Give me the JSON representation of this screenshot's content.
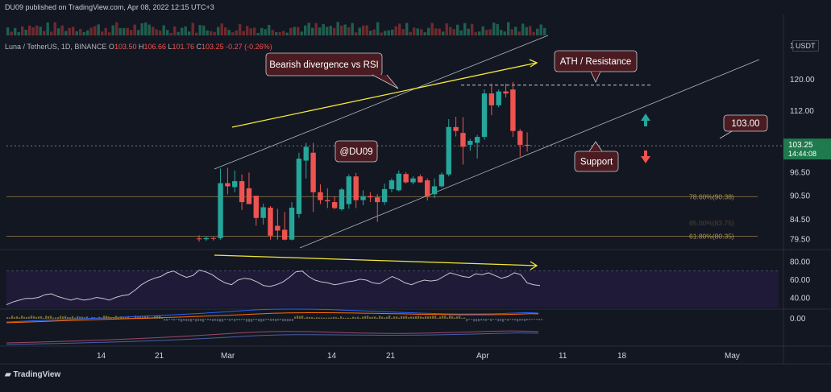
{
  "header": {
    "published": "DU09 published on TradingView.com, Apr 08, 2022 12:15 UTC+3",
    "symbol": "Luna / TetherUS, 1D, BINANCE",
    "ohlc": [
      {
        "label": "O",
        "value": "103.50"
      },
      {
        "label": "H",
        "value": "106.66"
      },
      {
        "label": "L",
        "value": "101.76"
      },
      {
        "label": "C",
        "value": "103.25"
      },
      {
        "label": "",
        "value": "-0.27 (-0.26%)"
      }
    ],
    "currency": "USDT"
  },
  "footer": {
    "brand": "TradingView"
  },
  "price_axis": {
    "ticks": [
      "120.00",
      "112.00",
      "96.50",
      "90.50",
      "84.50",
      "79.50"
    ],
    "top_marker": "1",
    "last_price": "103.25",
    "countdown": "14:44:08"
  },
  "rsi_axis": {
    "ticks": [
      "80.00",
      "60.00",
      "40.00"
    ]
  },
  "macd_axis": {
    "ticks": [
      "0.00"
    ]
  },
  "time_axis": {
    "ticks": [
      "14",
      "21",
      "Mar",
      "14",
      "21",
      "Apr",
      "11",
      "18",
      "May"
    ]
  },
  "annotations": {
    "divergence": "Bearish divergence vs RSI",
    "ath": "ATH / Resistance",
    "watermark": "@DU09",
    "support": "Support",
    "price_label": "103.00",
    "fib_786": "78.60%(90.38)",
    "fib_618": "61.80%(80.35)",
    "fib_hidden": "65.00%(83.75)"
  },
  "colors": {
    "up": "#26a69a",
    "down": "#ef5350",
    "background": "#131722",
    "trend_line": "#f5e83a",
    "rsi_fill": "#2a1e4a",
    "label_bg": "#4a1c22",
    "fib": "#b39552"
  },
  "chart_data": {
    "type": "candlestick",
    "title": "Luna / TetherUS, 1D, BINANCE",
    "candles": [
      {
        "date": "2022-02-24",
        "o": 79.8,
        "h": 80.6,
        "l": 79.0,
        "c": 79.6
      },
      {
        "date": "2022-02-25",
        "o": 79.6,
        "h": 80.4,
        "l": 79.2,
        "c": 79.9
      },
      {
        "date": "2022-02-26",
        "o": 79.9,
        "h": 80.2,
        "l": 79.3,
        "c": 79.7
      },
      {
        "date": "2022-02-27",
        "o": 79.9,
        "h": 97.5,
        "l": 79.5,
        "c": 93.8
      },
      {
        "date": "2022-02-28",
        "o": 93.8,
        "h": 97.7,
        "l": 91.0,
        "c": 93.0
      },
      {
        "date": "2022-03-01",
        "o": 92.8,
        "h": 97.0,
        "l": 91.5,
        "c": 94.3
      },
      {
        "date": "2022-03-02",
        "o": 94.3,
        "h": 96.0,
        "l": 87.0,
        "c": 89.0
      },
      {
        "date": "2022-03-03",
        "o": 92.5,
        "h": 96.5,
        "l": 88.5,
        "c": 88.5
      },
      {
        "date": "2022-03-04",
        "o": 90.6,
        "h": 90.6,
        "l": 83.0,
        "c": 85.0
      },
      {
        "date": "2022-03-05",
        "o": 85.0,
        "h": 88.6,
        "l": 83.3,
        "c": 87.7
      },
      {
        "date": "2022-03-06",
        "o": 87.6,
        "h": 88.0,
        "l": 79.5,
        "c": 80.5
      },
      {
        "date": "2022-03-07",
        "o": 83.0,
        "h": 87.3,
        "l": 79.5,
        "c": 81.8
      },
      {
        "date": "2022-03-08",
        "o": 82.0,
        "h": 86.5,
        "l": 79.3,
        "c": 79.5
      },
      {
        "date": "2022-03-09",
        "o": 79.5,
        "h": 89.0,
        "l": 79.3,
        "c": 87.6
      },
      {
        "date": "2022-03-10",
        "o": 86.0,
        "h": 101.5,
        "l": 85.0,
        "c": 100.0
      },
      {
        "date": "2022-03-11",
        "o": 99.5,
        "h": 104.0,
        "l": 95.0,
        "c": 103.0
      },
      {
        "date": "2022-03-12",
        "o": 101.5,
        "h": 104.0,
        "l": 86.5,
        "c": 91.5
      },
      {
        "date": "2022-03-13",
        "o": 91.5,
        "h": 93.5,
        "l": 88.5,
        "c": 89.5
      },
      {
        "date": "2022-03-14",
        "o": 89.5,
        "h": 92.5,
        "l": 87.5,
        "c": 89.2
      },
      {
        "date": "2022-03-15",
        "o": 89.0,
        "h": 90.5,
        "l": 87.2,
        "c": 87.5
      },
      {
        "date": "2022-03-16",
        "o": 87.2,
        "h": 92.6,
        "l": 86.8,
        "c": 92.2
      },
      {
        "date": "2022-03-17",
        "o": 88.5,
        "h": 96.0,
        "l": 87.3,
        "c": 95.5
      },
      {
        "date": "2022-03-18",
        "o": 95.5,
        "h": 96.4,
        "l": 87.5,
        "c": 89.5
      },
      {
        "date": "2022-03-19",
        "o": 89.5,
        "h": 92.0,
        "l": 88.2,
        "c": 90.5
      },
      {
        "date": "2022-03-20",
        "o": 90.5,
        "h": 91.5,
        "l": 89.0,
        "c": 90.2
      },
      {
        "date": "2022-03-21",
        "o": 90.2,
        "h": 91.0,
        "l": 84.0,
        "c": 89.0
      },
      {
        "date": "2022-03-22",
        "o": 89.0,
        "h": 93.7,
        "l": 88.3,
        "c": 92.3
      },
      {
        "date": "2022-03-23",
        "o": 92.3,
        "h": 95.0,
        "l": 91.5,
        "c": 94.5
      },
      {
        "date": "2022-03-24",
        "o": 92.0,
        "h": 97.0,
        "l": 91.7,
        "c": 96.2
      },
      {
        "date": "2022-03-25",
        "o": 96.1,
        "h": 96.6,
        "l": 93.7,
        "c": 94.0
      },
      {
        "date": "2022-03-26",
        "o": 94.0,
        "h": 95.5,
        "l": 93.5,
        "c": 95.0
      },
      {
        "date": "2022-03-27",
        "o": 95.5,
        "h": 96.0,
        "l": 93.9,
        "c": 94.0
      },
      {
        "date": "2022-03-28",
        "o": 94.5,
        "h": 95.0,
        "l": 89.4,
        "c": 90.5
      },
      {
        "date": "2022-03-29",
        "o": 91.0,
        "h": 95.0,
        "l": 90.0,
        "c": 93.0
      },
      {
        "date": "2022-03-30",
        "o": 93.0,
        "h": 96.5,
        "l": 92.7,
        "c": 96.0
      },
      {
        "date": "2022-03-31",
        "o": 96.0,
        "h": 110.0,
        "l": 95.5,
        "c": 108.0
      },
      {
        "date": "2022-04-01",
        "o": 108.0,
        "h": 110.6,
        "l": 105.6,
        "c": 107.0
      },
      {
        "date": "2022-04-02",
        "o": 106.5,
        "h": 110.5,
        "l": 98.5,
        "c": 103.0
      },
      {
        "date": "2022-04-03",
        "o": 103.5,
        "h": 105.0,
        "l": 102.0,
        "c": 104.5
      },
      {
        "date": "2022-04-04",
        "o": 104.0,
        "h": 106.0,
        "l": 100.0,
        "c": 105.5
      },
      {
        "date": "2022-04-05",
        "o": 105.5,
        "h": 117.5,
        "l": 104.8,
        "c": 116.5
      },
      {
        "date": "2022-04-06",
        "o": 116.5,
        "h": 119.0,
        "l": 111.0,
        "c": 113.5
      },
      {
        "date": "2022-04-07",
        "o": 113.5,
        "h": 117.5,
        "l": 113.0,
        "c": 117.0
      },
      {
        "date": "2022-04-08",
        "o": 117.0,
        "h": 119.0,
        "l": 115.5,
        "c": 116.5
      },
      {
        "date": "2022-04-09",
        "o": 117.5,
        "h": 119.4,
        "l": 105.5,
        "c": 107.0
      },
      {
        "date": "2022-04-10",
        "o": 107.0,
        "h": 107.5,
        "l": 100.5,
        "c": 103.5
      },
      {
        "date": "2022-04-11",
        "o": 103.5,
        "h": 106.66,
        "l": 101.76,
        "c": 103.25
      }
    ],
    "rsi": [
      33,
      36,
      38,
      40,
      40,
      41,
      44,
      45,
      42,
      40,
      38,
      40,
      38,
      39,
      41,
      40,
      38,
      41,
      43,
      44,
      49,
      55,
      59,
      62,
      64,
      68,
      70,
      66,
      63,
      65,
      71,
      69,
      66,
      61,
      57,
      55,
      60,
      62,
      61,
      58,
      54,
      53,
      55,
      58,
      63,
      69,
      70,
      64,
      60,
      58,
      57,
      55,
      56,
      58,
      59,
      61,
      60,
      57,
      56,
      60,
      64,
      61,
      57,
      55,
      58,
      60,
      59,
      60,
      64,
      68,
      66,
      64,
      63,
      67,
      66,
      68,
      65,
      62,
      64,
      68,
      66,
      57,
      55,
      54
    ],
    "ylim": [
      77,
      132
    ],
    "rsi_ylim": [
      30,
      90
    ]
  }
}
